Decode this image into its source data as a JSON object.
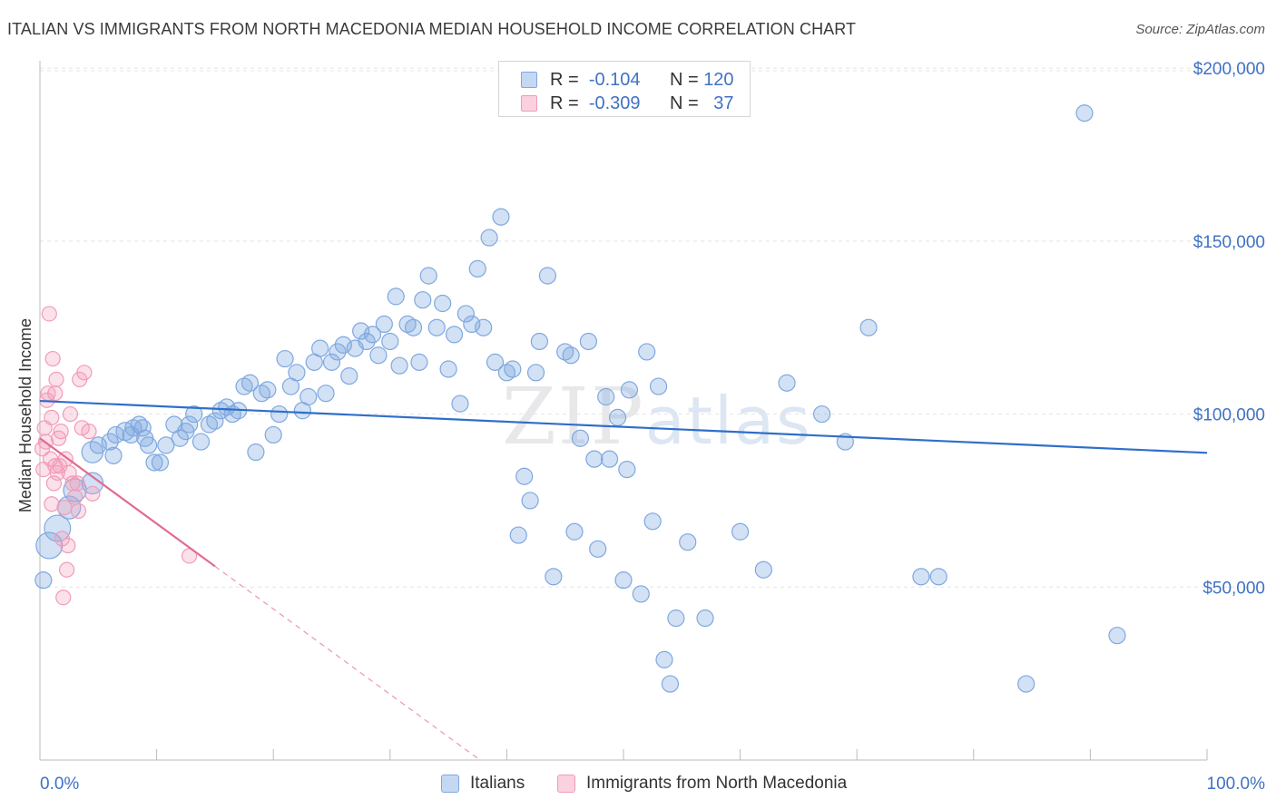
{
  "header": {
    "title": "ITALIAN VS IMMIGRANTS FROM NORTH MACEDONIA MEDIAN HOUSEHOLD INCOME CORRELATION CHART",
    "source": "Source: ZipAtlas.com"
  },
  "legend": {
    "rows": [
      {
        "r_label": "R =",
        "r_value": "-0.104",
        "n_label": "N =",
        "n_value": "120",
        "color": "#7fa8e0"
      },
      {
        "r_label": "R =",
        "r_value": "-0.309",
        "n_label": "N =",
        "n_value": "37",
        "color": "#f29bb8"
      }
    ],
    "series_names": [
      "Italians",
      "Immigrants from North Macedonia"
    ]
  },
  "watermark": {
    "zip": "ZIP",
    "atlas": "atlas"
  },
  "chart_data": {
    "type": "scatter",
    "title": "ITALIAN VS IMMIGRANTS FROM NORTH MACEDONIA MEDIAN HOUSEHOLD INCOME CORRELATION CHART",
    "ylabel": "Median Household Income",
    "xlim": [
      0,
      100
    ],
    "ylim": [
      0,
      210000
    ],
    "x_tick_labels": [
      "0.0%",
      "100.0%"
    ],
    "y_ticks": [
      50000,
      100000,
      150000,
      200000
    ],
    "y_tick_labels": [
      "$50,000",
      "$100,000",
      "$150,000",
      "$200,000"
    ],
    "grid": "horizontal dashed",
    "legend_placement": "top-center",
    "series": [
      {
        "name": "Italians",
        "color": "#7fa8e0",
        "trend": {
          "x": [
            0,
            100
          ],
          "y": [
            103800,
            88800
          ],
          "color": "#2f6fc9"
        },
        "points": [
          {
            "x": 0.3,
            "y": 52000,
            "s": 1.0
          },
          {
            "x": 0.8,
            "y": 62000,
            "s": 1.6
          },
          {
            "x": 1.5,
            "y": 67000,
            "s": 1.6
          },
          {
            "x": 2.5,
            "y": 73000,
            "s": 1.4
          },
          {
            "x": 3.0,
            "y": 78000,
            "s": 1.4
          },
          {
            "x": 4.5,
            "y": 80000,
            "s": 1.3
          },
          {
            "x": 4.5,
            "y": 89000,
            "s": 1.3
          },
          {
            "x": 5.0,
            "y": 91000,
            "s": 1.0
          },
          {
            "x": 6.0,
            "y": 92000,
            "s": 1.0
          },
          {
            "x": 6.3,
            "y": 88000,
            "s": 1.0
          },
          {
            "x": 6.5,
            "y": 94000,
            "s": 1.0
          },
          {
            "x": 7.3,
            "y": 95000,
            "s": 1.1
          },
          {
            "x": 7.8,
            "y": 94000,
            "s": 1.0
          },
          {
            "x": 8.0,
            "y": 96000,
            "s": 1.0
          },
          {
            "x": 8.5,
            "y": 97000,
            "s": 1.0
          },
          {
            "x": 8.8,
            "y": 96000,
            "s": 1.0
          },
          {
            "x": 9.0,
            "y": 93000,
            "s": 1.0
          },
          {
            "x": 9.3,
            "y": 91000,
            "s": 1.0
          },
          {
            "x": 9.8,
            "y": 86000,
            "s": 1.0
          },
          {
            "x": 10.3,
            "y": 86000,
            "s": 1.0
          },
          {
            "x": 10.8,
            "y": 91000,
            "s": 1.0
          },
          {
            "x": 11.5,
            "y": 97000,
            "s": 1.0
          },
          {
            "x": 12.0,
            "y": 93000,
            "s": 1.0
          },
          {
            "x": 12.5,
            "y": 95000,
            "s": 1.0
          },
          {
            "x": 12.8,
            "y": 97000,
            "s": 1.0
          },
          {
            "x": 13.2,
            "y": 100000,
            "s": 1.0
          },
          {
            "x": 13.8,
            "y": 92000,
            "s": 1.0
          },
          {
            "x": 14.5,
            "y": 97000,
            "s": 1.0
          },
          {
            "x": 15.0,
            "y": 98000,
            "s": 1.0
          },
          {
            "x": 15.5,
            "y": 101000,
            "s": 1.0
          },
          {
            "x": 16.0,
            "y": 102000,
            "s": 1.0
          },
          {
            "x": 16.5,
            "y": 100000,
            "s": 1.0
          },
          {
            "x": 17.0,
            "y": 101000,
            "s": 1.0
          },
          {
            "x": 17.5,
            "y": 108000,
            "s": 1.0
          },
          {
            "x": 18.0,
            "y": 109000,
            "s": 1.0
          },
          {
            "x": 18.5,
            "y": 89000,
            "s": 1.0
          },
          {
            "x": 19.0,
            "y": 106000,
            "s": 1.0
          },
          {
            "x": 19.5,
            "y": 107000,
            "s": 1.0
          },
          {
            "x": 20.0,
            "y": 94000,
            "s": 1.0
          },
          {
            "x": 20.5,
            "y": 100000,
            "s": 1.0
          },
          {
            "x": 21.0,
            "y": 116000,
            "s": 1.0
          },
          {
            "x": 21.5,
            "y": 108000,
            "s": 1.0
          },
          {
            "x": 22.0,
            "y": 112000,
            "s": 1.0
          },
          {
            "x": 22.5,
            "y": 101000,
            "s": 1.0
          },
          {
            "x": 23.0,
            "y": 105000,
            "s": 1.0
          },
          {
            "x": 23.5,
            "y": 115000,
            "s": 1.0
          },
          {
            "x": 24.0,
            "y": 119000,
            "s": 1.0
          },
          {
            "x": 24.5,
            "y": 106000,
            "s": 1.0
          },
          {
            "x": 25.0,
            "y": 115000,
            "s": 1.0
          },
          {
            "x": 25.5,
            "y": 118000,
            "s": 1.0
          },
          {
            "x": 26.0,
            "y": 120000,
            "s": 1.0
          },
          {
            "x": 26.5,
            "y": 111000,
            "s": 1.0
          },
          {
            "x": 27.0,
            "y": 119000,
            "s": 1.0
          },
          {
            "x": 27.5,
            "y": 124000,
            "s": 1.0
          },
          {
            "x": 28.0,
            "y": 121000,
            "s": 1.0
          },
          {
            "x": 28.5,
            "y": 123000,
            "s": 1.0
          },
          {
            "x": 29.0,
            "y": 117000,
            "s": 1.0
          },
          {
            "x": 29.5,
            "y": 126000,
            "s": 1.0
          },
          {
            "x": 30.0,
            "y": 121000,
            "s": 1.0
          },
          {
            "x": 30.5,
            "y": 134000,
            "s": 1.0
          },
          {
            "x": 30.8,
            "y": 114000,
            "s": 1.0
          },
          {
            "x": 31.5,
            "y": 126000,
            "s": 1.0
          },
          {
            "x": 32.0,
            "y": 125000,
            "s": 1.0
          },
          {
            "x": 32.5,
            "y": 115000,
            "s": 1.0
          },
          {
            "x": 32.8,
            "y": 133000,
            "s": 1.0
          },
          {
            "x": 33.3,
            "y": 140000,
            "s": 1.0
          },
          {
            "x": 34.0,
            "y": 125000,
            "s": 1.0
          },
          {
            "x": 34.5,
            "y": 132000,
            "s": 1.0
          },
          {
            "x": 35.0,
            "y": 113000,
            "s": 1.0
          },
          {
            "x": 35.5,
            "y": 123000,
            "s": 1.0
          },
          {
            "x": 36.0,
            "y": 103000,
            "s": 1.0
          },
          {
            "x": 36.5,
            "y": 129000,
            "s": 1.0
          },
          {
            "x": 37.0,
            "y": 126000,
            "s": 1.0
          },
          {
            "x": 37.5,
            "y": 142000,
            "s": 1.0
          },
          {
            "x": 38.0,
            "y": 125000,
            "s": 1.0
          },
          {
            "x": 38.5,
            "y": 151000,
            "s": 1.0
          },
          {
            "x": 39.0,
            "y": 115000,
            "s": 1.0
          },
          {
            "x": 39.5,
            "y": 157000,
            "s": 1.0
          },
          {
            "x": 40.0,
            "y": 112000,
            "s": 1.0
          },
          {
            "x": 40.5,
            "y": 113000,
            "s": 1.0
          },
          {
            "x": 41.0,
            "y": 65000,
            "s": 1.0
          },
          {
            "x": 41.5,
            "y": 82000,
            "s": 1.0
          },
          {
            "x": 42.0,
            "y": 75000,
            "s": 1.0
          },
          {
            "x": 42.5,
            "y": 112000,
            "s": 1.0
          },
          {
            "x": 42.8,
            "y": 121000,
            "s": 1.0
          },
          {
            "x": 43.5,
            "y": 140000,
            "s": 1.0
          },
          {
            "x": 44.0,
            "y": 53000,
            "s": 1.0
          },
          {
            "x": 45.0,
            "y": 118000,
            "s": 1.0
          },
          {
            "x": 45.5,
            "y": 117000,
            "s": 1.0
          },
          {
            "x": 45.8,
            "y": 66000,
            "s": 1.0
          },
          {
            "x": 46.3,
            "y": 93000,
            "s": 1.0
          },
          {
            "x": 47.0,
            "y": 121000,
            "s": 1.0
          },
          {
            "x": 47.5,
            "y": 87000,
            "s": 1.0
          },
          {
            "x": 47.8,
            "y": 61000,
            "s": 1.0
          },
          {
            "x": 48.5,
            "y": 105000,
            "s": 1.0
          },
          {
            "x": 48.8,
            "y": 87000,
            "s": 1.0
          },
          {
            "x": 49.5,
            "y": 99000,
            "s": 1.0
          },
          {
            "x": 50.0,
            "y": 52000,
            "s": 1.0
          },
          {
            "x": 50.3,
            "y": 84000,
            "s": 1.0
          },
          {
            "x": 50.5,
            "y": 107000,
            "s": 1.0
          },
          {
            "x": 51.5,
            "y": 48000,
            "s": 1.0
          },
          {
            "x": 52.0,
            "y": 118000,
            "s": 1.0
          },
          {
            "x": 52.5,
            "y": 69000,
            "s": 1.0
          },
          {
            "x": 53.0,
            "y": 108000,
            "s": 1.0
          },
          {
            "x": 53.5,
            "y": 29000,
            "s": 1.0
          },
          {
            "x": 54.0,
            "y": 22000,
            "s": 1.0
          },
          {
            "x": 54.5,
            "y": 41000,
            "s": 1.0
          },
          {
            "x": 55.5,
            "y": 63000,
            "s": 1.0
          },
          {
            "x": 57.0,
            "y": 41000,
            "s": 1.0
          },
          {
            "x": 60.0,
            "y": 66000,
            "s": 1.0
          },
          {
            "x": 62.0,
            "y": 55000,
            "s": 1.0
          },
          {
            "x": 64.0,
            "y": 109000,
            "s": 1.0
          },
          {
            "x": 67.0,
            "y": 100000,
            "s": 1.0
          },
          {
            "x": 69.0,
            "y": 92000,
            "s": 1.0
          },
          {
            "x": 71.0,
            "y": 125000,
            "s": 1.0
          },
          {
            "x": 75.5,
            "y": 53000,
            "s": 1.0
          },
          {
            "x": 77.0,
            "y": 53000,
            "s": 1.0
          },
          {
            "x": 84.5,
            "y": 22000,
            "s": 1.0
          },
          {
            "x": 89.5,
            "y": 187000,
            "s": 1.0
          },
          {
            "x": 92.3,
            "y": 36000,
            "s": 1.0
          }
        ]
      },
      {
        "name": "Immigrants from North Macedonia",
        "color": "#f29bb8",
        "trend": {
          "x": [
            0,
            15
          ],
          "y": [
            93000,
            56000
          ],
          "x_dashed_end": 37.5,
          "color": "#e26b91"
        },
        "points": [
          {
            "x": 0.2,
            "y": 90000
          },
          {
            "x": 0.3,
            "y": 84000
          },
          {
            "x": 0.4,
            "y": 96000
          },
          {
            "x": 0.5,
            "y": 92000
          },
          {
            "x": 0.6,
            "y": 104000
          },
          {
            "x": 0.7,
            "y": 106000
          },
          {
            "x": 0.8,
            "y": 129000
          },
          {
            "x": 0.9,
            "y": 87000
          },
          {
            "x": 1.0,
            "y": 74000
          },
          {
            "x": 1.0,
            "y": 99000
          },
          {
            "x": 1.1,
            "y": 116000
          },
          {
            "x": 1.2,
            "y": 80000
          },
          {
            "x": 1.3,
            "y": 85000
          },
          {
            "x": 1.3,
            "y": 106000
          },
          {
            "x": 1.4,
            "y": 110000
          },
          {
            "x": 1.5,
            "y": 83000
          },
          {
            "x": 1.6,
            "y": 93000
          },
          {
            "x": 1.7,
            "y": 85000
          },
          {
            "x": 1.8,
            "y": 95000
          },
          {
            "x": 1.9,
            "y": 64000
          },
          {
            "x": 2.0,
            "y": 47000
          },
          {
            "x": 2.1,
            "y": 73000
          },
          {
            "x": 2.2,
            "y": 87000
          },
          {
            "x": 2.3,
            "y": 55000
          },
          {
            "x": 2.4,
            "y": 62000
          },
          {
            "x": 2.5,
            "y": 83000
          },
          {
            "x": 2.6,
            "y": 100000
          },
          {
            "x": 2.8,
            "y": 80000
          },
          {
            "x": 3.0,
            "y": 76000
          },
          {
            "x": 3.2,
            "y": 80000
          },
          {
            "x": 3.3,
            "y": 72000
          },
          {
            "x": 3.4,
            "y": 110000
          },
          {
            "x": 3.6,
            "y": 96000
          },
          {
            "x": 3.8,
            "y": 112000
          },
          {
            "x": 4.2,
            "y": 95000
          },
          {
            "x": 4.5,
            "y": 77000
          },
          {
            "x": 12.8,
            "y": 59000
          }
        ]
      }
    ]
  }
}
